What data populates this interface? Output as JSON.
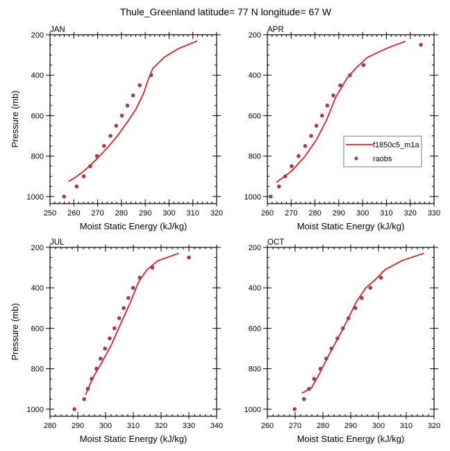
{
  "figure": {
    "title": "Thule_Greenland  latitude= 77 N longitude= 67 W"
  },
  "colors": {
    "model_line": "#ff0000",
    "obs_marker": "#b03060",
    "frame": "#000000",
    "background": "#ffffff"
  },
  "chart_data": [
    {
      "type": "line",
      "panel": "JAN",
      "title": "JAN",
      "xlabel": "Moist Static Energy (kJ/kg)",
      "ylabel": "Pressure (mb)",
      "xlim": [
        250,
        320
      ],
      "ylim": [
        1035,
        200
      ],
      "y_inverted": true,
      "xticks": [
        250,
        260,
        270,
        280,
        290,
        300,
        310,
        320
      ],
      "yticks": [
        200,
        400,
        600,
        800,
        1000
      ],
      "legend": null,
      "series": [
        {
          "name": "f1850c5_m1a",
          "style": "line",
          "points": [
            [
              257.8,
              925
            ],
            [
              260.1,
              910
            ],
            [
              263,
              885
            ],
            [
              266.5,
              850
            ],
            [
              270,
              810
            ],
            [
              274,
              760
            ],
            [
              278,
              705
            ],
            [
              282,
              640
            ],
            [
              286,
              570
            ],
            [
              289.3,
              490
            ],
            [
              291,
              429
            ],
            [
              293.2,
              366
            ],
            [
              298,
              311
            ],
            [
              303.8,
              269
            ],
            [
              311.9,
              230
            ]
          ]
        },
        {
          "name": "raobs",
          "style": "markers",
          "points": [
            [
              255.9,
              1000
            ],
            [
              261.2,
              950
            ],
            [
              264.2,
              900
            ],
            [
              266.9,
              850
            ],
            [
              269.7,
              800
            ],
            [
              272.7,
              750
            ],
            [
              275.4,
              700
            ],
            [
              277.8,
              650
            ],
            [
              280.2,
              600
            ],
            [
              282.5,
              550
            ],
            [
              284.9,
              500
            ],
            [
              287.7,
              450
            ],
            [
              292.5,
              400
            ]
          ]
        }
      ]
    },
    {
      "type": "line",
      "panel": "APR",
      "title": "APR",
      "xlabel": "Moist Static Energy (kJ/kg)",
      "ylabel": "",
      "xlim": [
        260,
        330
      ],
      "ylim": [
        1035,
        200
      ],
      "y_inverted": true,
      "xticks": [
        260,
        270,
        280,
        290,
        300,
        310,
        320,
        330
      ],
      "yticks": [
        200,
        400,
        600,
        800,
        1000
      ],
      "legend": {
        "placement": "center-right",
        "entries": [
          {
            "label": "f1850c5_m1a",
            "style": "line"
          },
          {
            "label": "raobs",
            "style": "marker"
          }
        ]
      },
      "series": [
        {
          "name": "f1850c5_m1a",
          "style": "line",
          "points": [
            [
              263.8,
              930
            ],
            [
              270.1,
              875
            ],
            [
              275.9,
              800
            ],
            [
              280.8,
              715
            ],
            [
              284.8,
              623
            ],
            [
              288.7,
              509
            ],
            [
              293.6,
              412
            ],
            [
              297.1,
              366
            ],
            [
              302,
              312
            ],
            [
              310.3,
              266
            ],
            [
              318,
              232
            ]
          ]
        },
        {
          "name": "raobs",
          "style": "markers",
          "points": [
            [
              261.4,
              1000
            ],
            [
              264.9,
              950
            ],
            [
              267.5,
              900
            ],
            [
              270.2,
              850
            ],
            [
              273.1,
              800
            ],
            [
              275.9,
              750
            ],
            [
              278.4,
              700
            ],
            [
              280.6,
              650
            ],
            [
              283,
              600
            ],
            [
              285.2,
              550
            ],
            [
              287.7,
              500
            ],
            [
              290.6,
              450
            ],
            [
              294.7,
              400
            ],
            [
              300.4,
              350
            ],
            [
              324.5,
              250
            ]
          ]
        }
      ]
    },
    {
      "type": "line",
      "panel": "JUL",
      "title": "JUL",
      "xlabel": "Moist Static Energy (kJ/kg)",
      "ylabel": "Pressure (mb)",
      "xlim": [
        280,
        340
      ],
      "ylim": [
        1035,
        200
      ],
      "y_inverted": true,
      "xticks": [
        280,
        290,
        300,
        310,
        320,
        330,
        340
      ],
      "yticks": [
        200,
        400,
        600,
        800,
        1000
      ],
      "legend": null,
      "series": [
        {
          "name": "f1850c5_m1a",
          "style": "line",
          "points": [
            [
              292.8,
              928
            ],
            [
              295.3,
              848
            ],
            [
              298.7,
              768
            ],
            [
              302.3,
              676
            ],
            [
              305.6,
              573
            ],
            [
              309,
              470
            ],
            [
              311.8,
              373
            ],
            [
              314.8,
              312
            ],
            [
              318.8,
              266
            ],
            [
              326.4,
              229
            ]
          ]
        },
        {
          "name": "raobs",
          "style": "markers",
          "points": [
            [
              288.8,
              1000
            ],
            [
              292.3,
              950
            ],
            [
              293.6,
              900
            ],
            [
              295,
              850
            ],
            [
              296.7,
              800
            ],
            [
              298.2,
              750
            ],
            [
              299.8,
              700
            ],
            [
              301.5,
              650
            ],
            [
              303.2,
              600
            ],
            [
              304.9,
              550
            ],
            [
              306.5,
              500
            ],
            [
              308.2,
              450
            ],
            [
              309.9,
              400
            ],
            [
              312.3,
              350
            ],
            [
              316.9,
              300
            ],
            [
              330,
              250
            ]
          ]
        }
      ]
    },
    {
      "type": "line",
      "panel": "OCT",
      "title": "OCT",
      "xlabel": "Moist Static Energy (kJ/kg)",
      "ylabel": "",
      "xlim": [
        260,
        320
      ],
      "ylim": [
        1035,
        200
      ],
      "y_inverted": true,
      "xticks": [
        260,
        270,
        280,
        290,
        300,
        310,
        320
      ],
      "yticks": [
        200,
        400,
        600,
        800,
        1000
      ],
      "legend": null,
      "series": [
        {
          "name": "f1850c5_m1a",
          "style": "line",
          "points": [
            [
              272.4,
              921
            ],
            [
              275.8,
              895
            ],
            [
              278.7,
              826
            ],
            [
              282,
              735
            ],
            [
              285.4,
              649
            ],
            [
              288.7,
              563
            ],
            [
              292,
              470
            ],
            [
              295.4,
              401
            ],
            [
              298.7,
              361
            ],
            [
              302.4,
              310
            ],
            [
              308.7,
              264
            ],
            [
              316.4,
              229
            ]
          ]
        },
        {
          "name": "raobs",
          "style": "markers",
          "points": [
            [
              269.8,
              1000
            ],
            [
              273.2,
              950
            ],
            [
              275,
              900
            ],
            [
              276.8,
              850
            ],
            [
              279.1,
              800
            ],
            [
              281.2,
              750
            ],
            [
              283.1,
              700
            ],
            [
              285.2,
              650
            ],
            [
              287.2,
              600
            ],
            [
              289.2,
              550
            ],
            [
              291.7,
              500
            ],
            [
              294,
              450
            ],
            [
              297.1,
              400
            ],
            [
              300.9,
              350
            ]
          ]
        }
      ]
    }
  ]
}
